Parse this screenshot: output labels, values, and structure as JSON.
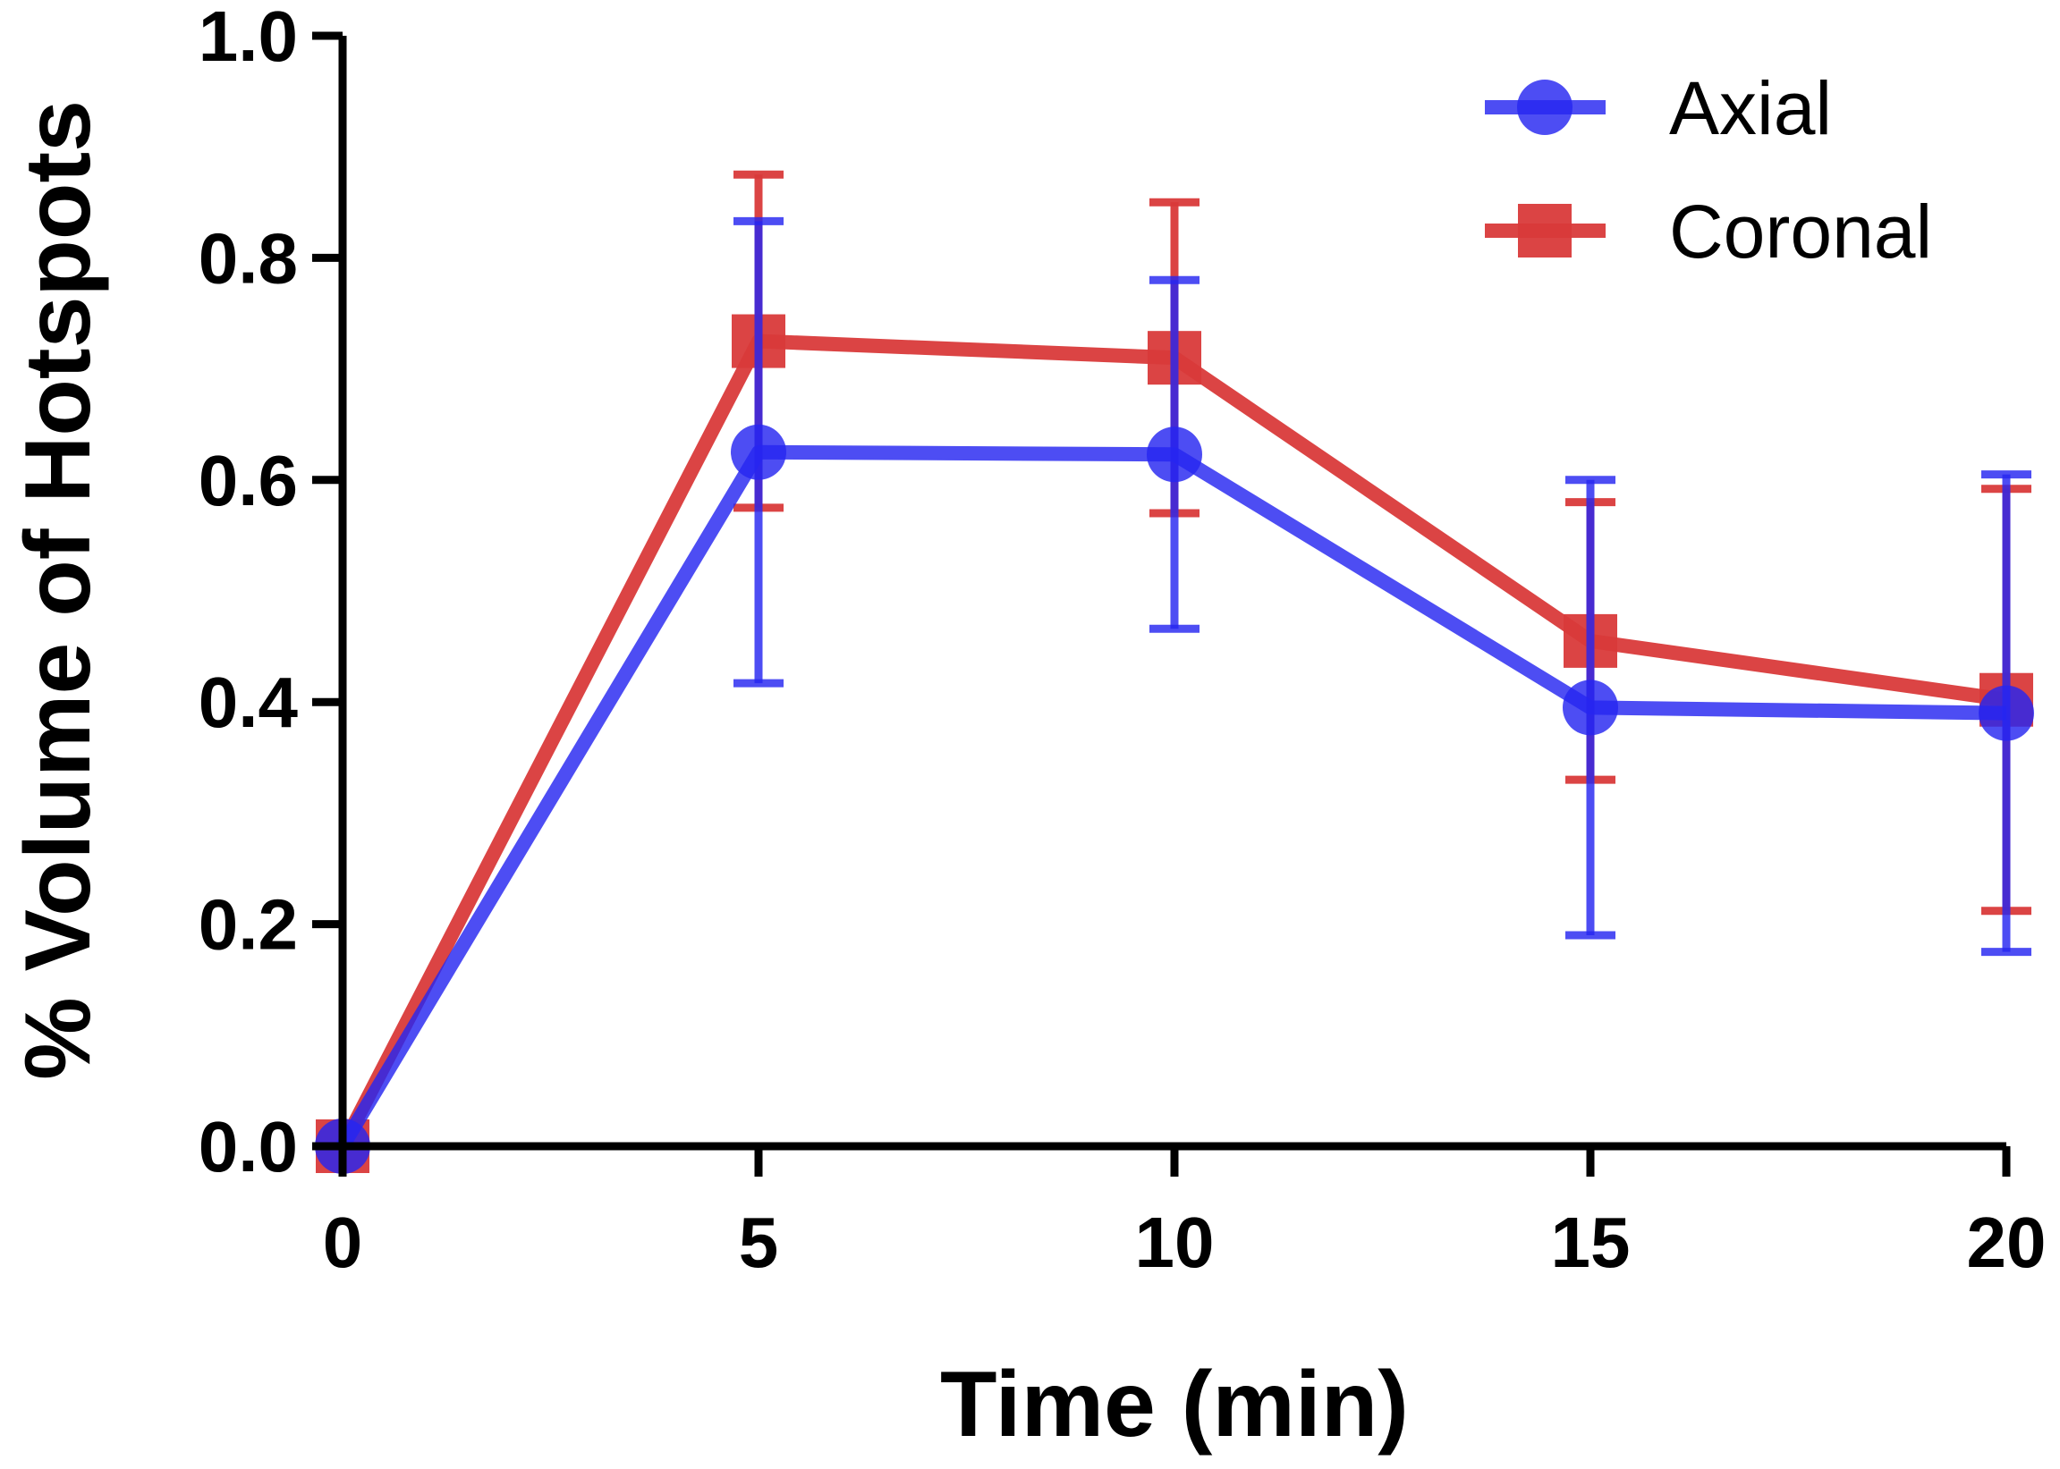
{
  "chart_data": {
    "type": "line",
    "title": "",
    "xlabel": "Time (min)",
    "ylabel": "% Volume of Hotspots",
    "x": [
      0,
      5,
      10,
      15,
      20
    ],
    "xlim": [
      0,
      20
    ],
    "ylim": [
      0,
      1.0
    ],
    "xticks": [
      0,
      5,
      10,
      15,
      20
    ],
    "yticks": [
      0.0,
      0.2,
      0.4,
      0.6,
      0.8,
      1.0
    ],
    "xtick_labels": [
      "0",
      "5",
      "10",
      "15",
      "20"
    ],
    "ytick_labels": [
      "0.0",
      "0.2",
      "0.4",
      "0.6",
      "0.8",
      "1.0"
    ],
    "grid": false,
    "legend_position": "top-right",
    "series": [
      {
        "name": "Coronal",
        "marker": "square",
        "color": "#d93a3a",
        "values": [
          0.0,
          0.725,
          0.71,
          0.455,
          0.402
        ],
        "error": [
          0.0,
          0.15,
          0.14,
          0.125,
          0.19
        ]
      },
      {
        "name": "Axial",
        "marker": "circle",
        "color": "#2626f0",
        "values": [
          0.0,
          0.625,
          0.623,
          0.395,
          0.39
        ],
        "error": [
          0.0,
          0.208,
          0.157,
          0.205,
          0.215
        ]
      }
    ]
  }
}
